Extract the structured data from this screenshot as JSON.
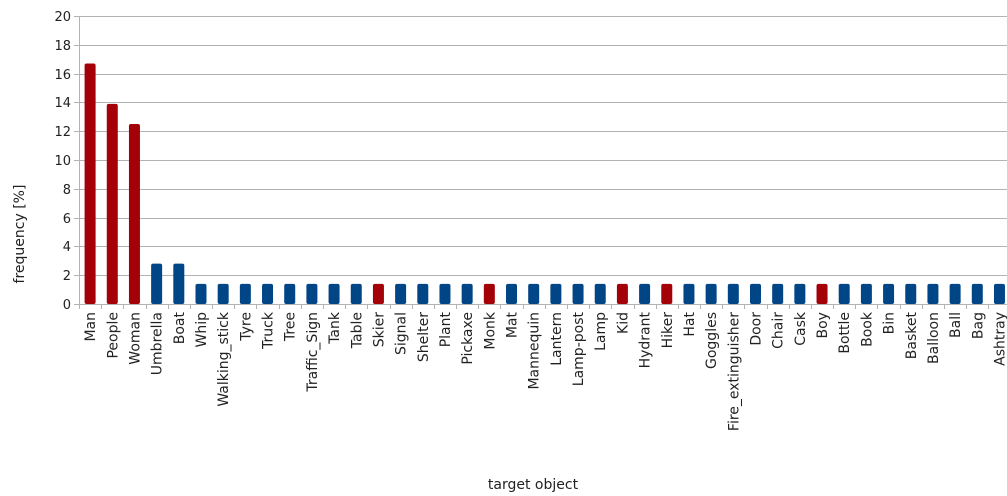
{
  "chart_data": {
    "type": "bar",
    "title": "",
    "xlabel": "target object",
    "ylabel": "frequency [%]",
    "ylim": [
      0,
      20
    ],
    "yticks": [
      0,
      2,
      4,
      6,
      8,
      10,
      12,
      14,
      16,
      18,
      20
    ],
    "grid": true,
    "legend": "none",
    "colors": {
      "highlight": "#a30008",
      "default": "#004586"
    },
    "categories": [
      "Man",
      "People",
      "Woman",
      "Umbrella",
      "Boat",
      "Whip",
      "Walking_stick",
      "Tyre",
      "Truck",
      "Tree",
      "Traffic_Sign",
      "Tank",
      "Table",
      "Skier",
      "Signal",
      "Shelter",
      "Plant",
      "Pickaxe",
      "Monk",
      "Mat",
      "Mannequin",
      "Lantern",
      "Lamp-post",
      "Lamp",
      "Kid",
      "Hydrant",
      "Hiker",
      "Hat",
      "Goggles",
      "Fire_extinguisher",
      "Door",
      "Chair",
      "Cask",
      "Boy",
      "Bottle",
      "Book",
      "Bin",
      "Basket",
      "Balloon",
      "Ball",
      "Bag",
      "Ashtray"
    ],
    "values": [
      16.7,
      13.9,
      12.5,
      2.8,
      2.8,
      1.4,
      1.4,
      1.4,
      1.4,
      1.4,
      1.4,
      1.4,
      1.4,
      1.4,
      1.4,
      1.4,
      1.4,
      1.4,
      1.4,
      1.4,
      1.4,
      1.4,
      1.4,
      1.4,
      1.4,
      1.4,
      1.4,
      1.4,
      1.4,
      1.4,
      1.4,
      1.4,
      1.4,
      1.4,
      1.4,
      1.4,
      1.4,
      1.4,
      1.4,
      1.4,
      1.4,
      1.4
    ],
    "highlighted": [
      true,
      true,
      true,
      false,
      false,
      false,
      false,
      false,
      false,
      false,
      false,
      false,
      false,
      true,
      false,
      false,
      false,
      false,
      true,
      false,
      false,
      false,
      false,
      false,
      true,
      false,
      true,
      false,
      false,
      false,
      false,
      false,
      false,
      true,
      false,
      false,
      false,
      false,
      false,
      false,
      false,
      false
    ]
  }
}
